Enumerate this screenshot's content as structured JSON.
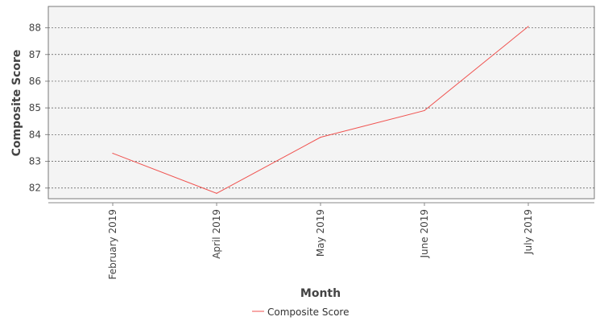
{
  "chart_data": {
    "type": "line",
    "title": "",
    "xlabel": "Month",
    "ylabel": "Composite Score",
    "categories": [
      "February 2019",
      "April 2019",
      "May 2019",
      "June 2019",
      "July 2019"
    ],
    "series": [
      {
        "name": "Composite Score",
        "values": [
          83.3,
          81.8,
          83.9,
          84.9,
          88.05
        ],
        "color": "#f0524f"
      }
    ],
    "ylim": [
      81.6,
      88.8
    ],
    "yticks": [
      82,
      83,
      84,
      85,
      86,
      87,
      88
    ],
    "grid": true,
    "legend_position": "bottom-center",
    "plot_background": "#f4f4f4",
    "grid_color": "#555555"
  }
}
